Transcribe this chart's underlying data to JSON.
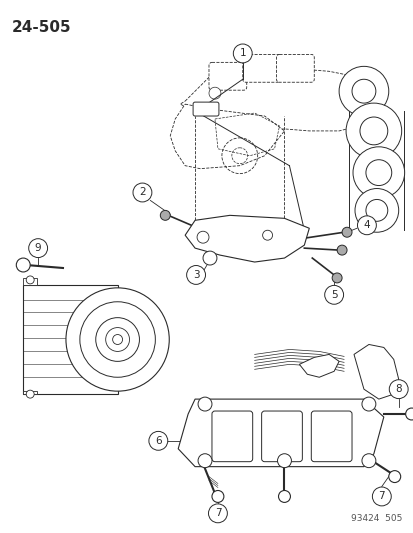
{
  "title": "24–505",
  "catalog_number": "93424  505",
  "background_color": "#ffffff",
  "line_color": "#2a2a2a",
  "title_fontsize": 11,
  "catalog_fontsize": 6.5,
  "callout_fontsize": 7.5
}
